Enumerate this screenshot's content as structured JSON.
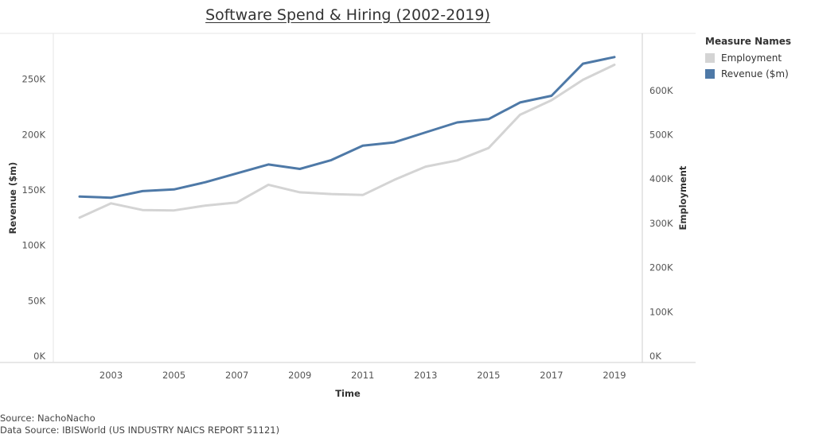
{
  "page": {
    "title": "Software Spend & Hiring (2002-2019)",
    "source_line": "Source: NachoNacho",
    "data_source_line": "Data Source: IBISWorld (US INDUSTRY NAICS REPORT 51121)"
  },
  "legend": {
    "title": "Measure Names",
    "items": [
      {
        "label": "Employment",
        "color": "#d4d4d4"
      },
      {
        "label": "Revenue ($m)",
        "color": "#4e79a7"
      }
    ]
  },
  "chart_data": {
    "type": "line",
    "title": "Software Spend & Hiring (2002-2019)",
    "xlabel": "Time",
    "x": [
      2002,
      2003,
      2004,
      2005,
      2006,
      2007,
      2008,
      2009,
      2010,
      2011,
      2012,
      2013,
      2014,
      2015,
      2016,
      2017,
      2018,
      2019
    ],
    "x_tick_labels": [
      "2003",
      "2005",
      "2007",
      "2009",
      "2011",
      "2013",
      "2015",
      "2017",
      "2019"
    ],
    "left_axis": {
      "label": "Revenue ($m)",
      "ylim": [
        0,
        277000
      ],
      "ticks": [
        0,
        50000,
        100000,
        150000,
        200000,
        250000
      ],
      "tick_labels": [
        "0K",
        "50K",
        "100K",
        "150K",
        "200K",
        "250K"
      ]
    },
    "right_axis": {
      "label": "Employment",
      "ylim": [
        0,
        693000
      ],
      "ticks": [
        0,
        100000,
        200000,
        300000,
        400000,
        500000,
        600000
      ],
      "tick_labels": [
        "0K",
        "100K",
        "200K",
        "300K",
        "400K",
        "500K",
        "600K"
      ]
    },
    "series": [
      {
        "name": "Employment",
        "axis": "right",
        "color": "#d4d4d4",
        "values": [
          313000,
          345000,
          330000,
          329000,
          340000,
          347000,
          387000,
          370000,
          366000,
          364000,
          398000,
          428000,
          442000,
          470000,
          545000,
          578000,
          624000,
          658000
        ]
      },
      {
        "name": "Revenue ($m)",
        "axis": "left",
        "color": "#4e79a7",
        "values": [
          144000,
          143000,
          149000,
          150500,
          157000,
          165000,
          173000,
          169000,
          177000,
          190000,
          193000,
          202000,
          211000,
          214000,
          229000,
          235000,
          264000,
          270000
        ]
      }
    ],
    "grid": false,
    "legend_position": "right"
  }
}
